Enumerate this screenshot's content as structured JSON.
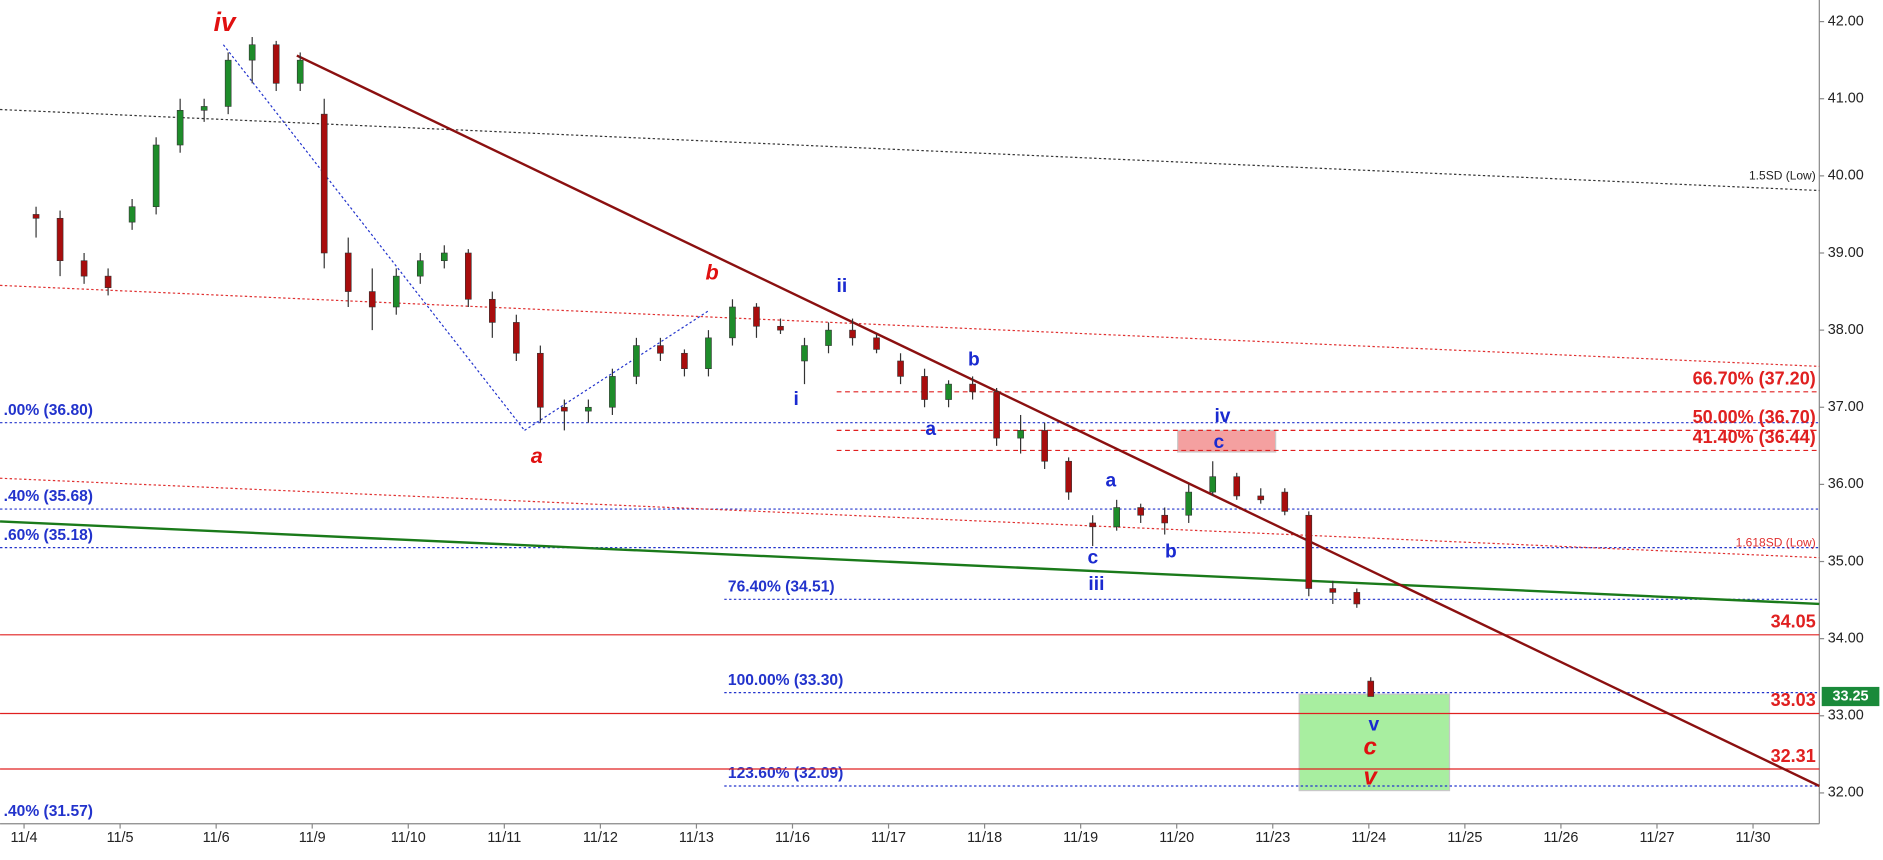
{
  "chart_data": {
    "type": "candlestick",
    "xlim": [
      -0.25,
      18.69
    ],
    "ylim": [
      31.6,
      42.28
    ],
    "xticks": [
      {
        "value": 0,
        "label": "11/4"
      },
      {
        "value": 1,
        "label": "11/5"
      },
      {
        "value": 2,
        "label": "11/6"
      },
      {
        "value": 3,
        "label": "11/9"
      },
      {
        "value": 4,
        "label": "11/10"
      },
      {
        "value": 5,
        "label": "11/11"
      },
      {
        "value": 6,
        "label": "11/12"
      },
      {
        "value": 7,
        "label": "11/13"
      },
      {
        "value": 8,
        "label": "11/16"
      },
      {
        "value": 9,
        "label": "11/17"
      },
      {
        "value": 10,
        "label": "11/18"
      },
      {
        "value": 11,
        "label": "11/19"
      },
      {
        "value": 12,
        "label": "11/20"
      },
      {
        "value": 13,
        "label": "11/23"
      },
      {
        "value": 14,
        "label": "11/24"
      },
      {
        "value": 15,
        "label": "11/25"
      },
      {
        "value": 16,
        "label": "11/26"
      },
      {
        "value": 17,
        "label": "11/27"
      },
      {
        "value": 18,
        "label": "11/30"
      }
    ],
    "yticks": [
      {
        "value": 32,
        "label": "32.00"
      },
      {
        "value": 33,
        "label": "33.00"
      },
      {
        "value": 34,
        "label": "34.00"
      },
      {
        "value": 35,
        "label": "35.00"
      },
      {
        "value": 36,
        "label": "36.00"
      },
      {
        "value": 37,
        "label": "37.00"
      },
      {
        "value": 38,
        "label": "38.00"
      },
      {
        "value": 39,
        "label": "39.00"
      },
      {
        "value": 40,
        "label": "40.00"
      },
      {
        "value": 41,
        "label": "41.00"
      },
      {
        "value": 42,
        "label": "42.00"
      }
    ],
    "up_color": "#1e8c2a",
    "down_color": "#a80d0d",
    "candles": [
      [
        0.125,
        39.5,
        39.6,
        39.2,
        39.45
      ],
      [
        0.375,
        39.45,
        39.55,
        38.7,
        38.9
      ],
      [
        0.625,
        38.9,
        39.0,
        38.6,
        38.7
      ],
      [
        0.875,
        38.7,
        38.8,
        38.45,
        38.55
      ],
      [
        1.125,
        39.4,
        39.7,
        39.3,
        39.6
      ],
      [
        1.375,
        39.6,
        40.5,
        39.5,
        40.4
      ],
      [
        1.625,
        40.4,
        41.0,
        40.3,
        40.85
      ],
      [
        1.875,
        40.85,
        41.0,
        40.7,
        40.9
      ],
      [
        2.125,
        40.9,
        41.6,
        40.8,
        41.5
      ],
      [
        2.375,
        41.5,
        41.8,
        41.2,
        41.7
      ],
      [
        2.625,
        41.7,
        41.75,
        41.1,
        41.2
      ],
      [
        2.875,
        41.2,
        41.6,
        41.1,
        41.5
      ],
      [
        3.125,
        40.8,
        41.0,
        38.8,
        39.0
      ],
      [
        3.375,
        39.0,
        39.2,
        38.3,
        38.5
      ],
      [
        3.625,
        38.5,
        38.8,
        38.0,
        38.3
      ],
      [
        3.875,
        38.3,
        38.8,
        38.2,
        38.7
      ],
      [
        4.125,
        38.7,
        39.0,
        38.6,
        38.9
      ],
      [
        4.375,
        38.9,
        39.1,
        38.8,
        39.0
      ],
      [
        4.625,
        39.0,
        39.05,
        38.3,
        38.4
      ],
      [
        4.875,
        38.4,
        38.5,
        37.9,
        38.1
      ],
      [
        5.125,
        38.1,
        38.2,
        37.6,
        37.7
      ],
      [
        5.375,
        37.7,
        37.8,
        36.8,
        37.0
      ],
      [
        5.625,
        37.0,
        37.1,
        36.7,
        36.95
      ],
      [
        5.875,
        36.95,
        37.1,
        36.8,
        37.0
      ],
      [
        6.125,
        37.0,
        37.5,
        36.9,
        37.4
      ],
      [
        6.375,
        37.4,
        37.9,
        37.3,
        37.8
      ],
      [
        6.625,
        37.8,
        37.9,
        37.6,
        37.7
      ],
      [
        6.875,
        37.7,
        37.75,
        37.4,
        37.5
      ],
      [
        7.125,
        37.5,
        38.0,
        37.4,
        37.9
      ],
      [
        7.375,
        37.9,
        38.4,
        37.8,
        38.3
      ],
      [
        7.625,
        38.3,
        38.35,
        37.9,
        38.05
      ],
      [
        7.875,
        38.05,
        38.15,
        37.95,
        38.0
      ],
      [
        8.125,
        37.6,
        37.9,
        37.3,
        37.8
      ],
      [
        8.375,
        37.8,
        38.1,
        37.7,
        38.0
      ],
      [
        8.625,
        38.0,
        38.15,
        37.8,
        37.9
      ],
      [
        8.875,
        37.9,
        37.95,
        37.7,
        37.75
      ],
      [
        9.125,
        37.6,
        37.7,
        37.3,
        37.4
      ],
      [
        9.375,
        37.4,
        37.5,
        37.0,
        37.1
      ],
      [
        9.625,
        37.1,
        37.35,
        37.0,
        37.3
      ],
      [
        9.875,
        37.3,
        37.4,
        37.1,
        37.2
      ],
      [
        10.125,
        37.2,
        37.25,
        36.5,
        36.6
      ],
      [
        10.375,
        36.6,
        36.9,
        36.4,
        36.7
      ],
      [
        10.625,
        36.7,
        36.8,
        36.2,
        36.3
      ],
      [
        10.875,
        36.3,
        36.35,
        35.8,
        35.9
      ],
      [
        11.125,
        35.5,
        35.6,
        35.2,
        35.45
      ],
      [
        11.375,
        35.45,
        35.8,
        35.4,
        35.7
      ],
      [
        11.625,
        35.7,
        35.75,
        35.5,
        35.6
      ],
      [
        11.875,
        35.6,
        35.7,
        35.35,
        35.5
      ],
      [
        12.125,
        35.6,
        36.0,
        35.5,
        35.9
      ],
      [
        12.375,
        35.9,
        36.3,
        35.85,
        36.1
      ],
      [
        12.625,
        36.1,
        36.15,
        35.8,
        35.85
      ],
      [
        12.875,
        35.85,
        35.95,
        35.75,
        35.8
      ],
      [
        13.125,
        35.9,
        35.95,
        35.6,
        35.65
      ],
      [
        13.375,
        35.6,
        35.65,
        34.55,
        34.65
      ],
      [
        13.625,
        34.65,
        34.75,
        34.45,
        34.6
      ],
      [
        13.875,
        34.6,
        34.65,
        34.4,
        34.45
      ],
      [
        14.02,
        33.45,
        33.5,
        33.25,
        33.25
      ]
    ],
    "trendlines": [
      {
        "from": [
          -0.25,
          40.86
        ],
        "to": [
          18.69,
          39.81
        ],
        "color": "#333333",
        "style": "dotted",
        "width": 1,
        "label": "1.5SD (Low)"
      },
      {
        "from": [
          -0.25,
          38.58
        ],
        "to": [
          18.69,
          37.53
        ],
        "color": "#e03030",
        "style": "dotted",
        "width": 1
      },
      {
        "from": [
          -0.25,
          36.08
        ],
        "to": [
          18.69,
          35.05
        ],
        "color": "#e03030",
        "style": "dotted",
        "width": 1,
        "label": "1.618SD (Low)"
      },
      {
        "from": [
          -0.25,
          35.52
        ],
        "to": [
          18.69,
          34.45
        ],
        "color": "#1a7a1a",
        "style": "solid",
        "width": 2
      },
      {
        "from": [
          2.84,
          41.56
        ],
        "to": [
          18.69,
          32.09
        ],
        "color": "#8b1010",
        "style": "solid",
        "width": 2
      },
      {
        "from": [
          2.075,
          41.7
        ],
        "to": [
          5.21,
          36.7
        ],
        "color": "#2233cc",
        "style": "dotted",
        "width": 1
      },
      {
        "from": [
          5.21,
          36.7
        ],
        "to": [
          7.125,
          38.25
        ],
        "color": "#2233cc",
        "style": "dotted",
        "width": 1
      }
    ],
    "levels": [
      {
        "value": 36.8,
        "label": ".00% (36.80)",
        "color": "#2233cc",
        "style": "dotted",
        "from": -0.25,
        "label_at": "start"
      },
      {
        "value": 35.68,
        "label": ".40% (35.68)",
        "color": "#2233cc",
        "style": "dotted",
        "from": -0.25,
        "label_at": "start"
      },
      {
        "value": 35.18,
        "label": ".60% (35.18)",
        "color": "#2233cc",
        "style": "dotted",
        "from": -0.25,
        "label_at": "start"
      },
      {
        "value": 31.57,
        "label": ".40% (31.57)",
        "color": "#2233cc",
        "style": "dotted",
        "from": -0.25,
        "label_at": "start"
      },
      {
        "value": 34.51,
        "label": "76.40% (34.51)",
        "color": "#2233cc",
        "style": "dotted",
        "from": 7.29,
        "label_at": "start"
      },
      {
        "value": 33.3,
        "label": "100.00% (33.30)",
        "color": "#2233cc",
        "style": "dotted",
        "from": 7.29,
        "label_at": "start"
      },
      {
        "value": 32.09,
        "label": "123.60% (32.09)",
        "color": "#2233cc",
        "style": "dotted",
        "from": 7.29,
        "label_at": "start"
      },
      {
        "value": 37.2,
        "label": "66.70% (37.20)",
        "color": "#e02020",
        "style": "dashed",
        "from": 8.46,
        "label_at": "end"
      },
      {
        "value": 36.7,
        "label": "50.00% (36.70)",
        "color": "#e02020",
        "style": "dashed",
        "from": 8.46,
        "label_at": "end"
      },
      {
        "value": 36.44,
        "label": "41.40% (36.44)",
        "color": "#e02020",
        "style": "dashed",
        "from": 8.46,
        "label_at": "end"
      },
      {
        "value": 34.05,
        "label": "34.05",
        "color": "#e02020",
        "style": "solid",
        "from": -0.25,
        "label_at": "end"
      },
      {
        "value": 33.03,
        "label": "33.03",
        "color": "#e02020",
        "style": "solid",
        "from": -0.25,
        "label_at": "end"
      },
      {
        "value": 32.31,
        "label": "32.31",
        "color": "#e02020",
        "style": "solid",
        "from": -0.25,
        "label_at": "end"
      }
    ],
    "zones": [
      {
        "t": [
          12.01,
          13.03
        ],
        "p": [
          36.42,
          36.7
        ],
        "color": "#f4a0a0"
      },
      {
        "t": [
          13.275,
          14.84
        ],
        "p": [
          32.03,
          33.28
        ],
        "color": "#a8eea0"
      }
    ],
    "last": {
      "value": 33.25,
      "label": "33.25",
      "color": "#1a8a3a"
    },
    "waves": [
      "iv",
      "a",
      "b",
      "ii",
      "i",
      "b",
      "a",
      "iv",
      "c",
      "a",
      "c",
      "iii",
      "b",
      "v",
      "c",
      "v"
    ]
  }
}
